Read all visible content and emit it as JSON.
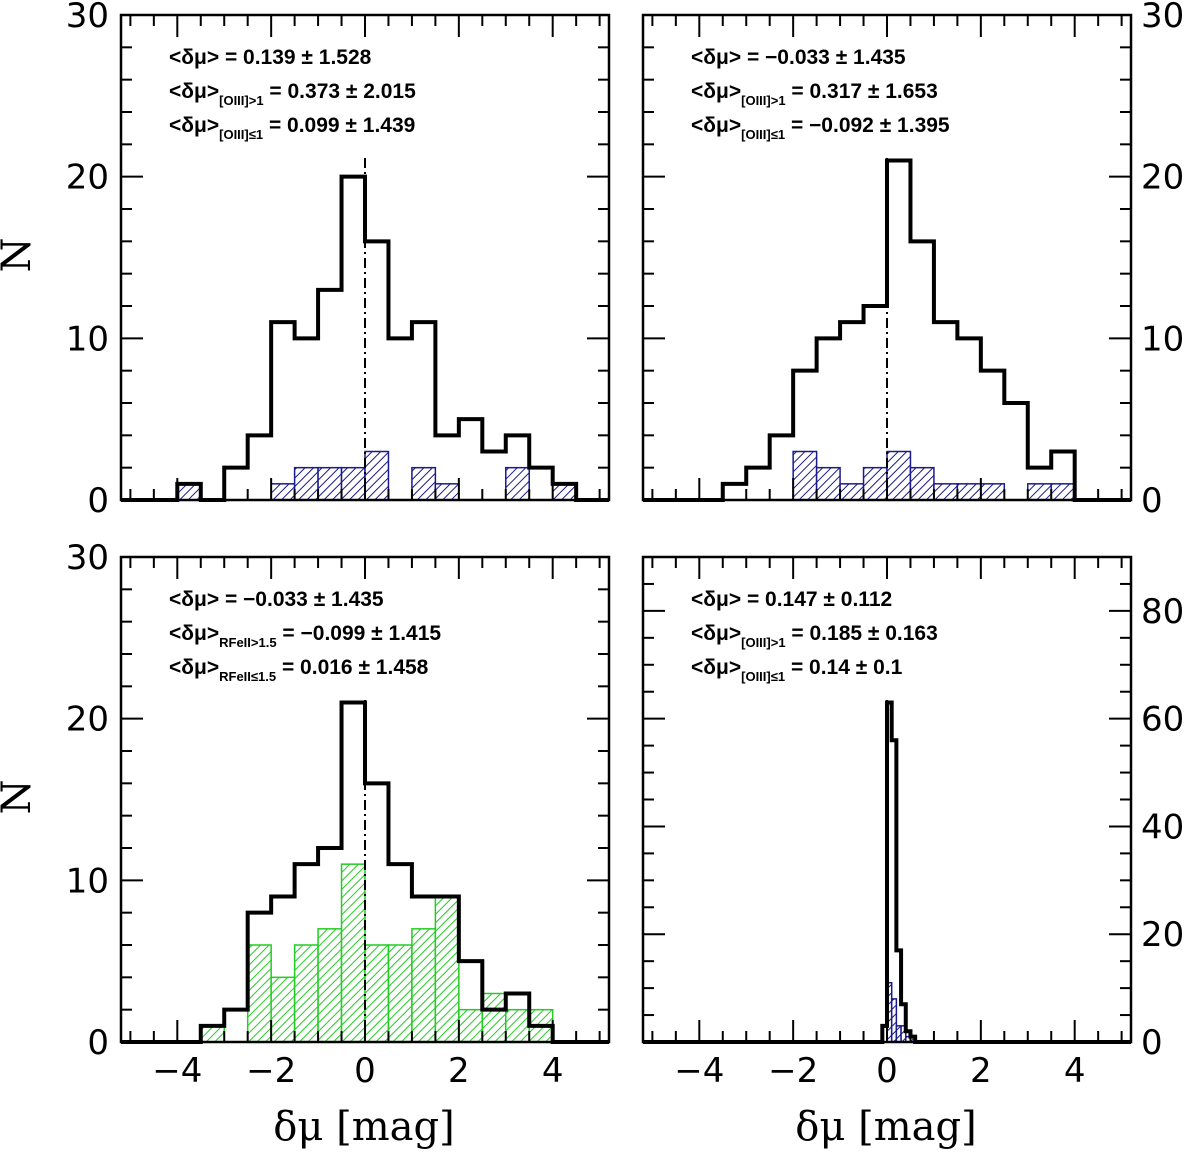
{
  "figure": {
    "xlabel": "δμ [mag]",
    "ylabel": "N",
    "colors": {
      "axis": "#000000",
      "outline": "#000000",
      "blue": "#1a1a8c",
      "green": "#22cc22"
    }
  },
  "chart_data": [
    {
      "type": "histogram",
      "panel": "top-left",
      "xlim": [
        -5.2,
        5.2
      ],
      "ylim": [
        0,
        30
      ],
      "y_tick_labels_side": "left",
      "x_tick_labels_shown": false,
      "bin_width": 0.5,
      "bin_left_edges": [
        -4.0,
        -3.5,
        -3.0,
        -2.5,
        -2.0,
        -1.5,
        -1.0,
        -0.5,
        0.0,
        0.5,
        1.0,
        1.5,
        2.0,
        2.5,
        3.0,
        3.5,
        4.0
      ],
      "series": [
        {
          "name": "all",
          "style": "outline",
          "color": "#000000",
          "values": [
            1,
            0,
            2,
            4,
            11,
            10,
            13,
            20,
            16,
            10,
            11,
            4,
            5,
            3,
            4,
            2,
            1
          ]
        },
        {
          "name": "[OIII]>1",
          "style": "hatched",
          "color": "#1a1a8c",
          "values": [
            1,
            0,
            0,
            0,
            1,
            2,
            2,
            2,
            3,
            0,
            2,
            1,
            0,
            0,
            2,
            0,
            1
          ]
        }
      ],
      "reference_line_x": 0,
      "annotations": [
        {
          "main": "<δμ> = 0.139 ± 1.528",
          "sub": ""
        },
        {
          "main": "<δμ>",
          "sub": "[OIII]>1",
          "rest": " = 0.373 ± 2.015"
        },
        {
          "main": "<δμ>",
          "sub": "[OIII]≤1",
          "rest": " = 0.099 ± 1.439"
        }
      ]
    },
    {
      "type": "histogram",
      "panel": "top-right",
      "xlim": [
        -5.2,
        5.2
      ],
      "ylim": [
        0,
        30
      ],
      "y_tick_labels_side": "right",
      "x_tick_labels_shown": false,
      "bin_width": 0.5,
      "bin_left_edges": [
        -4.0,
        -3.5,
        -3.0,
        -2.5,
        -2.0,
        -1.5,
        -1.0,
        -0.5,
        0.0,
        0.5,
        1.0,
        1.5,
        2.0,
        2.5,
        3.0,
        3.5,
        4.0
      ],
      "series": [
        {
          "name": "all",
          "style": "outline",
          "color": "#000000",
          "values": [
            0,
            1,
            2,
            4,
            8,
            10,
            11,
            12,
            21,
            16,
            11,
            10,
            8,
            6,
            2,
            3,
            0
          ]
        },
        {
          "name": "[OIII]>1",
          "style": "hatched",
          "color": "#1a1a8c",
          "values": [
            0,
            0,
            0,
            0,
            3,
            2,
            1,
            2,
            3,
            2,
            1,
            1,
            1,
            0,
            1,
            1,
            0
          ]
        }
      ],
      "reference_line_x": 0,
      "annotations": [
        {
          "main": "<δμ> = −0.033 ± 1.435",
          "sub": ""
        },
        {
          "main": "<δμ>",
          "sub": "[OIII]>1",
          "rest": " = 0.317 ± 1.653"
        },
        {
          "main": "<δμ>",
          "sub": "[OIII]≤1",
          "rest": " = −0.092 ± 1.395"
        }
      ]
    },
    {
      "type": "histogram",
      "panel": "bottom-left",
      "xlim": [
        -5.2,
        5.2
      ],
      "ylim": [
        0,
        30
      ],
      "y_tick_labels_side": "left",
      "x_tick_labels_shown": true,
      "x_tick_labels": [
        "−4",
        "−2",
        "0",
        "2",
        "4"
      ],
      "bin_width": 0.5,
      "bin_left_edges": [
        -4.0,
        -3.5,
        -3.0,
        -2.5,
        -2.0,
        -1.5,
        -1.0,
        -0.5,
        0.0,
        0.5,
        1.0,
        1.5,
        2.0,
        2.5,
        3.0,
        3.5,
        4.0
      ],
      "series": [
        {
          "name": "all",
          "style": "outline",
          "color": "#000000",
          "values": [
            0,
            1,
            2,
            8,
            9,
            11,
            12,
            21,
            16,
            11,
            9,
            9,
            5,
            2,
            3,
            1,
            0
          ]
        },
        {
          "name": "R_FeII>1.5",
          "style": "hatched",
          "color": "#22cc22",
          "values": [
            0,
            1,
            0,
            6,
            4,
            6,
            7,
            11,
            6,
            6,
            7,
            9,
            2,
            3,
            2,
            2,
            0
          ]
        }
      ],
      "reference_line_x": 0,
      "annotations": [
        {
          "main": "<δμ> = −0.033 ± 1.435",
          "sub": ""
        },
        {
          "main": "<δμ>",
          "sub": "RFeII>1.5",
          "rest": " = −0.099 ± 1.415"
        },
        {
          "main": "<δμ>",
          "sub": "RFeII≤1.5",
          "rest": " = 0.016 ± 1.458"
        }
      ]
    },
    {
      "type": "histogram",
      "panel": "bottom-right",
      "xlim": [
        -5.2,
        5.2
      ],
      "ylim": [
        0,
        90
      ],
      "y_tick_labels_side": "right",
      "x_tick_labels_shown": true,
      "x_tick_labels": [
        "−4",
        "−2",
        "0",
        "2",
        "4"
      ],
      "bin_width": 0.1,
      "bin_left_edges": [
        -0.1,
        0.0,
        0.1,
        0.2,
        0.3,
        0.4,
        0.5
      ],
      "series": [
        {
          "name": "all",
          "style": "outline",
          "color": "#000000",
          "values": [
            3,
            63,
            56,
            17,
            7,
            2,
            1
          ]
        },
        {
          "name": "[OIII]>1",
          "style": "hatched",
          "color": "#1a1a8c",
          "values": [
            0,
            11,
            8,
            3,
            3,
            1,
            1
          ]
        }
      ],
      "reference_line_x": 0,
      "annotations": [
        {
          "main": "<δμ> = 0.147 ± 0.112",
          "sub": ""
        },
        {
          "main": "<δμ>",
          "sub": "[OIII]>1",
          "rest": " = 0.185 ± 0.163"
        },
        {
          "main": "<δμ>",
          "sub": "[OIII]≤1",
          "rest": " = 0.14 ± 0.1"
        }
      ]
    }
  ]
}
